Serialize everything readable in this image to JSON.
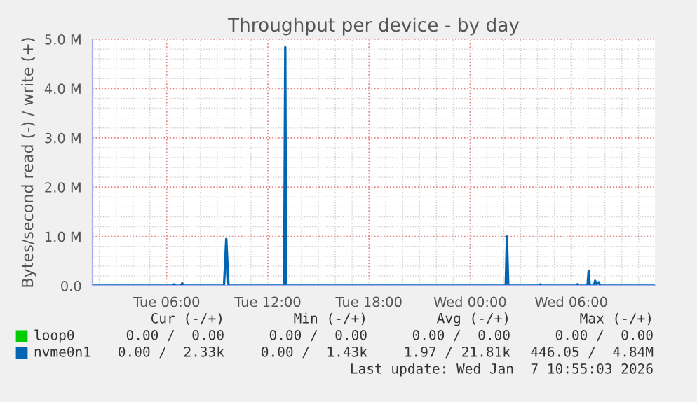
{
  "chart_data": {
    "type": "line",
    "title": "Throughput per device - by day",
    "ylabel": "Bytes/second read (-) / write (+)",
    "xlim": [
      "2026-01-06T01:36",
      "2026-01-07T10:58"
    ],
    "xticks": [
      {
        "value": "2026-01-06T06:00",
        "label": "Tue 06:00"
      },
      {
        "value": "2026-01-06T12:00",
        "label": "Tue 12:00"
      },
      {
        "value": "2026-01-06T18:00",
        "label": "Tue 18:00"
      },
      {
        "value": "2026-01-07T00:00",
        "label": "Wed 00:00"
      },
      {
        "value": "2026-01-07T06:00",
        "label": "Wed 06:00"
      }
    ],
    "ylim": [
      0,
      5.0
    ],
    "yticks": [
      {
        "value": 0,
        "label": "0.0"
      },
      {
        "value": 1,
        "label": "1.0 M"
      },
      {
        "value": 2,
        "label": "2.0 M"
      },
      {
        "value": 3,
        "label": "3.0 M"
      },
      {
        "value": 4,
        "label": "4.0 M"
      },
      {
        "value": 5,
        "label": "5.0 M"
      }
    ],
    "grid": true,
    "legend": "bottom",
    "series": [
      {
        "name": "loop0",
        "color": "#00cc00"
      },
      {
        "name": "nvme0n1",
        "color": "#0066b3",
        "x": [
          "2026-01-06T01:36",
          "2026-01-06T06:22",
          "2026-01-06T06:26",
          "2026-01-06T06:31",
          "2026-01-06T06:50",
          "2026-01-06T06:55",
          "2026-01-06T07:00",
          "2026-01-06T09:24",
          "2026-01-06T09:32",
          "2026-01-06T09:40",
          "2026-01-06T12:58",
          "2026-01-06T13:02",
          "2026-01-06T13:05",
          "2026-01-07T02:07",
          "2026-01-07T02:11",
          "2026-01-07T02:16",
          "2026-01-07T04:06",
          "2026-01-07T04:10",
          "2026-01-07T04:14",
          "2026-01-07T06:17",
          "2026-01-07T06:22",
          "2026-01-07T06:26",
          "2026-01-07T06:58",
          "2026-01-07T07:02",
          "2026-01-07T07:06",
          "2026-01-07T07:21",
          "2026-01-07T07:25",
          "2026-01-07T07:30",
          "2026-01-07T07:38",
          "2026-01-07T07:43",
          "2026-01-07T10:58"
        ],
        "values": [
          0,
          0,
          0.03,
          0,
          0,
          0.05,
          0,
          0,
          0.95,
          0,
          0,
          4.84,
          0,
          0,
          1.0,
          0,
          0,
          0.03,
          0,
          0,
          0.03,
          0,
          0,
          0.3,
          0,
          0,
          0.1,
          0.03,
          0.07,
          0,
          0
        ]
      }
    ],
    "annotations": [
      "Cur (-/+)",
      "Min (-/+)",
      "Avg (-/+)",
      "Max (-/+)",
      "0.00 /  0.00",
      "0.00 /  0.00",
      "0.00 /  0.00",
      "0.00 /  0.00",
      "0.00 /  2.33k",
      "0.00 /  1.43k",
      "1.97 / 21.81k",
      "446.05 /  4.84M",
      "Last update: Wed Jan  7 10:55:03 2026"
    ]
  }
}
